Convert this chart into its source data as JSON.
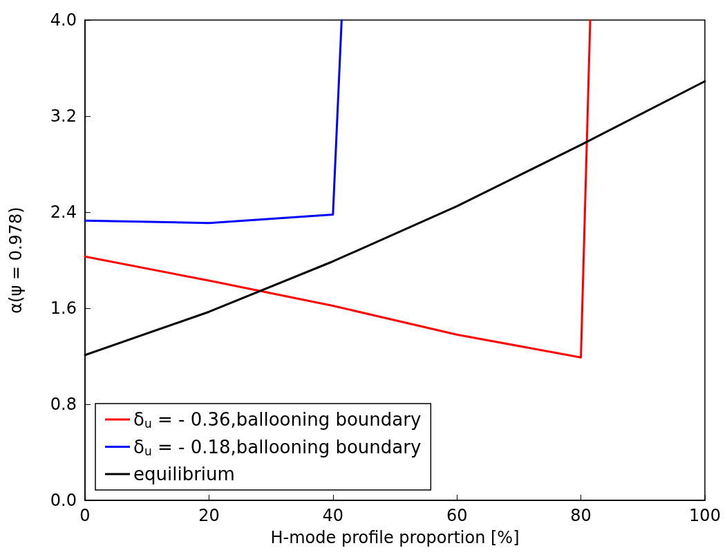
{
  "chart_data": {
    "type": "line",
    "xlabel": "H-mode profile proportion [%]",
    "ylabel": "α(ψ = 0.978)",
    "xlim": [
      0,
      100
    ],
    "xticks": [
      0,
      20,
      40,
      60,
      80,
      100
    ],
    "ylim": [
      0,
      4
    ],
    "yticks": [
      {
        "value": 0,
        "label": "0.0"
      },
      {
        "value": 0.8,
        "label": "0.8"
      },
      {
        "value": 1.6,
        "label": "1.6"
      },
      {
        "value": 2.4,
        "label": "2.4"
      },
      {
        "value": 3.2,
        "label": "3.2"
      },
      {
        "value": 4,
        "label": "4.0"
      }
    ],
    "grid": false,
    "legend": "bottom left",
    "marker": "none",
    "line_style": "solid",
    "series": [
      {
        "name": "δ$_{u}$ = - 0.36,ballooning boundary",
        "color": "#ff0000",
        "x": [
          0,
          20,
          40,
          60,
          80,
          81.5
        ],
        "values": [
          2.03,
          1.83,
          1.62,
          1.38,
          1.19,
          4.0
        ]
      },
      {
        "name": "δ$_{u}$ = - 0.18,ballooning boundary",
        "color": "#0000ff",
        "x": [
          0,
          20,
          40,
          41.4
        ],
        "values": [
          2.33,
          2.31,
          2.38,
          4.0
        ]
      },
      {
        "name": "equilibrium",
        "color": "#000000",
        "x": [
          0,
          20,
          40,
          60,
          80,
          100
        ],
        "values": [
          1.21,
          1.57,
          1.99,
          2.45,
          2.96,
          3.49
        ]
      }
    ]
  }
}
